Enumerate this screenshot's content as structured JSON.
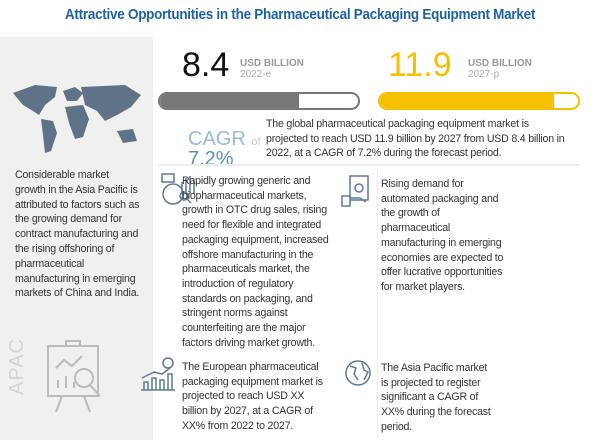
{
  "title": "Attractive Opportunities in the Pharmaceutical Packaging Equipment Market",
  "left_panel": {
    "text": "Considerable market growth in the Asia Pacific is attributed to factors such as the growing demand for contract manufacturing and the rising offshoring of pharmaceutical manufacturing in emerging markets of China and India.",
    "region_label": "APAC",
    "icons": [
      "world-map-icon",
      "presentation-chart-icon"
    ]
  },
  "stats": {
    "current": {
      "value": "8.4",
      "unit": "USD BILLION",
      "year": "2022-e",
      "bar_fill_percent": 70,
      "color": "#777777"
    },
    "forecast": {
      "value": "11.9",
      "unit": "USD BILLION",
      "year": "2027-p",
      "bar_fill_percent": 88,
      "color": "#f5c000"
    },
    "cagr_label": "CAGR",
    "cagr_of": "of",
    "cagr_value": "7.2%",
    "summary": "The global pharmaceutical packaging equipment market is projected to reach USD 11.9 billion by 2027 from USD 8.4 billion in 2022, at a CAGR of 7.2% during the forecast period."
  },
  "cards": [
    {
      "icon": "analytics-icon",
      "text": "Rapidly growing generic and biopharmaceutical markets, growth in OTC drug sales, rising need for flexible and integrated packaging equipment, increased offshore manufacturing in the pharmaceuticals market, the introduction of regulatory standards on packaging, and stringent norms against counterfeiting are the major factors driving market growth."
    },
    {
      "icon": "money-hand-icon",
      "text": "Rising demand for automated packaging and the growth of pharmaceutical manufacturing in emerging economies are expected to offer lucrative opportunities for market players."
    },
    {
      "icon": "growth-chart-dollar-icon",
      "text": "The European pharmaceutical packaging equipment market is projected to reach USD XX billion by 2027, at a CAGR of XX% from 2022 to 2027."
    },
    {
      "icon": "globe-icon",
      "text": "The Asia Pacific market is projected to register significant a CAGR of XX% during the forecast period."
    }
  ],
  "colors": {
    "title": "#1f62a0",
    "cagr": "#5b8fc0",
    "accent_yellow": "#f5c000",
    "gray_bar": "#777777"
  }
}
